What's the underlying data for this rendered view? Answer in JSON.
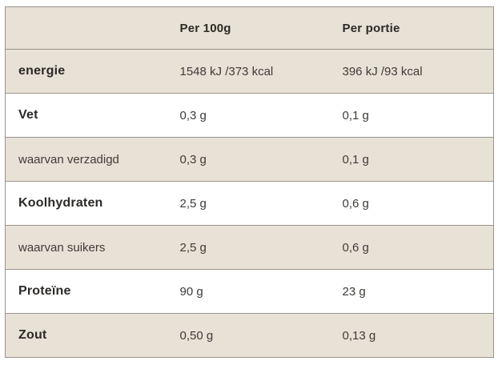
{
  "colors": {
    "shaded_row_bg": "#e8e1d6",
    "border_color": "#99948d",
    "text_strong": "#2c2a27",
    "text_regular": "#3e3b37",
    "page_bg": "#ffffff"
  },
  "table": {
    "columns": [
      "",
      "Per 100g",
      "Per portie"
    ],
    "rows": [
      {
        "label": "energie",
        "per_100g": "1548 kJ /373 kcal",
        "per_portie": "396 kJ /93 kcal"
      },
      {
        "label": "Vet",
        "per_100g": "0,3 g",
        "per_portie": "0,1 g"
      },
      {
        "label": "waarvan verzadigd",
        "per_100g": "0,3 g",
        "per_portie": "0,1 g"
      },
      {
        "label": "Koolhydraten",
        "per_100g": "2,5 g",
        "per_portie": "0,6 g"
      },
      {
        "label": "waarvan suikers",
        "per_100g": "2,5 g",
        "per_portie": "0,6 g"
      },
      {
        "label": "Proteïne",
        "per_100g": "90 g",
        "per_portie": "23 g"
      },
      {
        "label": "Zout",
        "per_100g": "0,50 g",
        "per_portie": "0,13 g"
      }
    ]
  }
}
